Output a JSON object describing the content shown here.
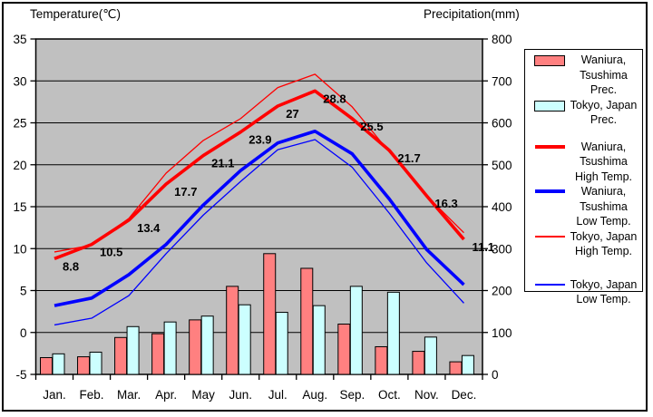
{
  "titles": {
    "left": "Temperature(℃)",
    "right": "Precipitation(mm)"
  },
  "colors": {
    "plot_background": "#C0C0C0",
    "waniura_prec_bar": "#FF8080",
    "tokyo_prec_bar": "#CCFFFF",
    "high_temp_line": "#FF0000",
    "low_temp_line": "#0000FF",
    "grid": "#000000"
  },
  "chart_data": {
    "type": "bar",
    "subtype": "combined bar + line climate chart",
    "categories": [
      "Jan.",
      "Feb.",
      "Mar.",
      "Apr.",
      "May",
      "Jun.",
      "Jul.",
      "Aug.",
      "Sep.",
      "Oct.",
      "Nov.",
      "Dec."
    ],
    "temp_axis": {
      "label": "Temperature(℃)",
      "min": -5,
      "max": 35,
      "ticks": [
        35,
        30,
        25,
        20,
        15,
        10,
        5,
        0,
        -5
      ]
    },
    "precip_axis": {
      "label": "Precipitation(mm)",
      "min": 0,
      "max": 800,
      "ticks": [
        800,
        700,
        600,
        500,
        400,
        300,
        200,
        100,
        0
      ]
    },
    "grid": "horizontal gridlines every 5°C / 100 mm",
    "legend_position": "right",
    "series": [
      {
        "name": "Waniura, Tsushima Prec.",
        "type": "bar",
        "axis": "precip",
        "color": "#FF8080",
        "values": [
          40,
          42,
          88,
          97,
          130,
          210,
          288,
          253,
          120,
          66,
          55,
          30
        ]
      },
      {
        "name": "Tokyo, Japan Prec.",
        "type": "bar",
        "axis": "precip",
        "color": "#CCFFFF",
        "values": [
          49,
          53,
          114,
          125,
          139,
          166,
          148,
          164,
          210,
          196,
          89,
          45
        ]
      },
      {
        "name": "Tokyo, Japan High Temp.",
        "type": "line",
        "axis": "temp",
        "thick": false,
        "color": "#FF0000",
        "values": [
          9.6,
          10.4,
          13.6,
          19.0,
          22.9,
          25.5,
          29.2,
          30.8,
          26.9,
          21.5,
          16.3,
          11.9
        ]
      },
      {
        "name": "Tokyo, Japan Low Temp.",
        "type": "line",
        "axis": "temp",
        "thick": false,
        "color": "#0000FF",
        "values": [
          0.9,
          1.7,
          4.4,
          9.4,
          14.0,
          18.0,
          21.8,
          23.0,
          19.7,
          14.2,
          8.3,
          3.5
        ]
      },
      {
        "name": "Waniura, Tsushima Low Temp.",
        "type": "line",
        "axis": "temp",
        "thick": true,
        "color": "#0000FF",
        "values": [
          3.2,
          4.1,
          6.9,
          10.5,
          15.2,
          19.3,
          22.6,
          24.0,
          21.3,
          15.9,
          9.9,
          5.7
        ]
      },
      {
        "name": "Waniura, Tsushima High Temp.",
        "type": "line",
        "axis": "temp",
        "thick": true,
        "color": "#FF0000",
        "values": [
          8.8,
          10.5,
          13.4,
          17.7,
          21.1,
          23.9,
          27,
          28.8,
          25.5,
          21.7,
          16.3,
          11.1
        ],
        "point_labels": [
          "8.8",
          "10.5",
          "13.4",
          "17.7",
          "21.1",
          "23.9",
          "27",
          "28.8",
          "25.5",
          "21.7",
          "16.3",
          "11.1"
        ]
      }
    ]
  },
  "legend": {
    "items": [
      {
        "key": "waniura-prec",
        "swatch": "bar-pink",
        "label": "Waniura,\nTsushima\nPrec."
      },
      {
        "key": "tokyo-prec",
        "swatch": "bar-cyan",
        "label": "Tokyo, Japan\nPrec."
      },
      {
        "key": "waniura-high",
        "swatch": "line-thick-red",
        "label": "Waniura,\nTsushima\nHigh Temp."
      },
      {
        "key": "waniura-low",
        "swatch": "line-thick-blue",
        "label": "Waniura,\nTsushima\nLow Temp."
      },
      {
        "key": "tokyo-high",
        "swatch": "line-thin-red",
        "label": "Tokyo, Japan\nHigh Temp."
      },
      {
        "key": "tokyo-low",
        "swatch": "line-thin-blue",
        "label": "Tokyo, Japan\nLow Temp."
      }
    ]
  }
}
